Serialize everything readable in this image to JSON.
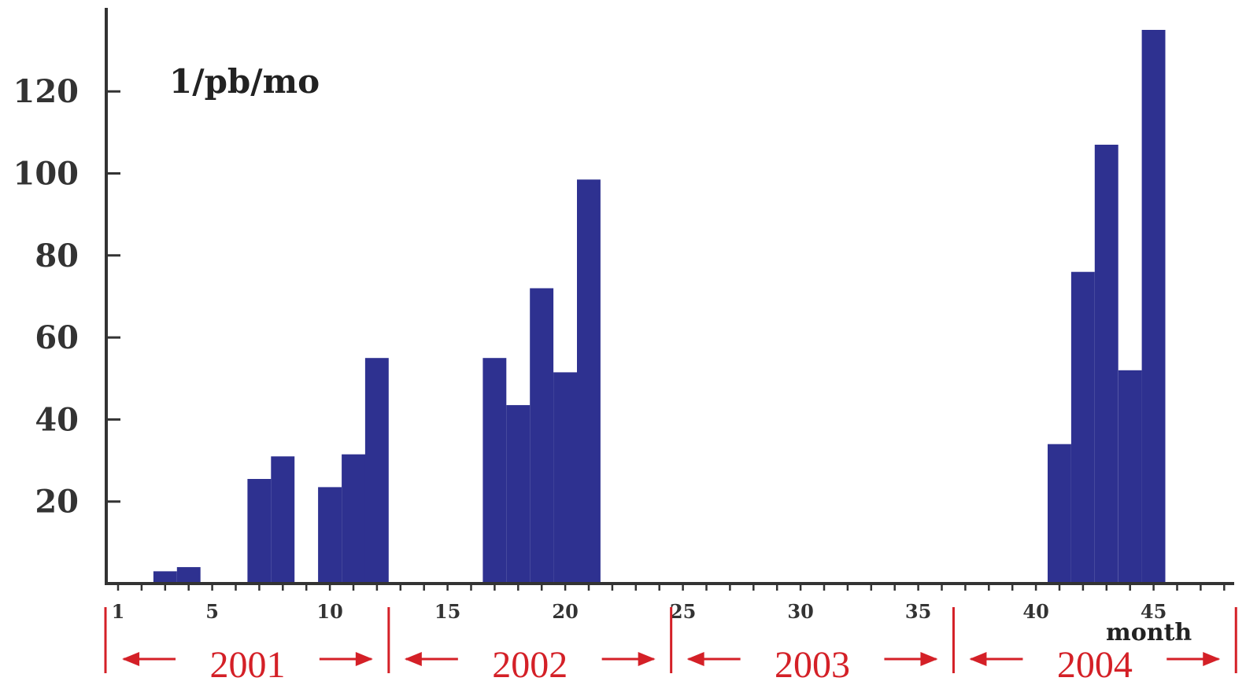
{
  "chart_data": {
    "type": "bar",
    "title": "",
    "unit_label": "1/pb/mo",
    "xlabel": "month",
    "ylabel": "",
    "xlim": [
      0.5,
      48.5
    ],
    "ylim": [
      0,
      135
    ],
    "x_ticks": [
      1,
      5,
      10,
      15,
      20,
      25,
      30,
      35,
      40,
      45
    ],
    "y_ticks": [
      20,
      40,
      60,
      80,
      100,
      120
    ],
    "grid": false,
    "bar_color": "#2e3190",
    "axis_color": "#333333",
    "x": [
      3,
      4,
      7,
      8,
      10,
      11,
      12,
      17,
      18,
      19,
      20,
      21,
      41,
      42,
      43,
      44,
      45
    ],
    "values": [
      3,
      4,
      25.5,
      31,
      23.5,
      31.5,
      55,
      55,
      43.5,
      72,
      51.5,
      98.5,
      34,
      76,
      107,
      52,
      135
    ],
    "year_spans": [
      {
        "label": "2001",
        "start": 1,
        "end": 12
      },
      {
        "label": "2002",
        "start": 13,
        "end": 24
      },
      {
        "label": "2003",
        "start": 25,
        "end": 36
      },
      {
        "label": "2004",
        "start": 37,
        "end": 48
      }
    ],
    "annotation_color": "#d42027"
  }
}
